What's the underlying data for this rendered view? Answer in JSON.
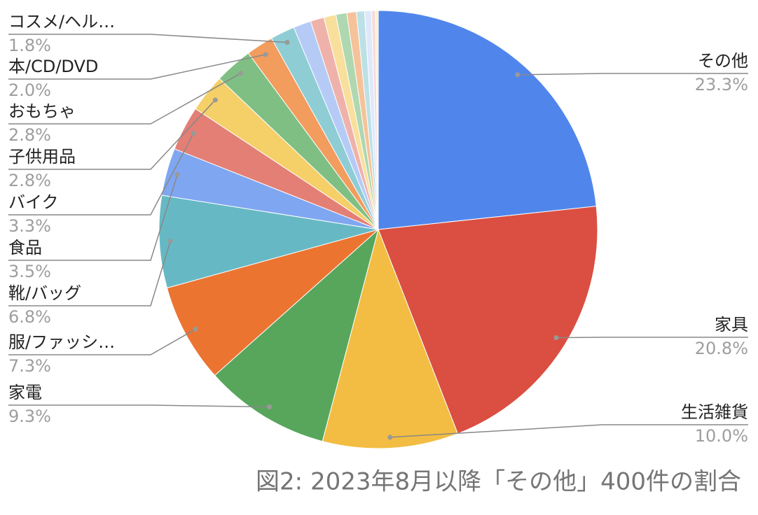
{
  "chart_data": {
    "type": "pie",
    "title": "図2: 2023年8月以降「その他」400件の割合",
    "categories": [
      "その他",
      "家具",
      "生活雑貨",
      "家電",
      "服/ファッシ…",
      "靴/バッグ",
      "食品",
      "バイク",
      "子供用品",
      "おもちゃ",
      "本/CD/DVD",
      "コスメ/ヘル…",
      null,
      null,
      null,
      null,
      null,
      null,
      null,
      null,
      null
    ],
    "values": [
      23.3,
      20.8,
      10.0,
      9.3,
      7.3,
      6.8,
      3.5,
      3.3,
      2.8,
      2.8,
      2.0,
      1.8,
      1.3,
      1.0,
      0.9,
      0.8,
      0.7,
      0.6,
      0.5,
      0.3,
      0.2
    ],
    "value_labels": [
      "23.3%",
      "20.8%",
      "10.0%",
      "9.3%",
      "7.3%",
      "6.8%",
      "3.5%",
      "3.3%",
      "2.8%",
      "2.8%",
      "2.0%",
      "1.8%",
      null,
      null,
      null,
      null,
      null,
      null,
      null,
      null,
      null
    ],
    "colors": [
      "#5086ec",
      "#da4f41",
      "#f2bd42",
      "#58a65c",
      "#ec7431",
      "#66b9c4",
      "#7fa6f1",
      "#e47f75",
      "#f5cf67",
      "#80bf83",
      "#f29c5e",
      "#8fcdd5",
      "#b5cbf6",
      "#efb2ab",
      "#f8e09c",
      "#afd7b0",
      "#f6c29a",
      "#bbe1e6",
      "#dfe8fb",
      "#f6dcd9",
      "#fcefcd"
    ]
  }
}
